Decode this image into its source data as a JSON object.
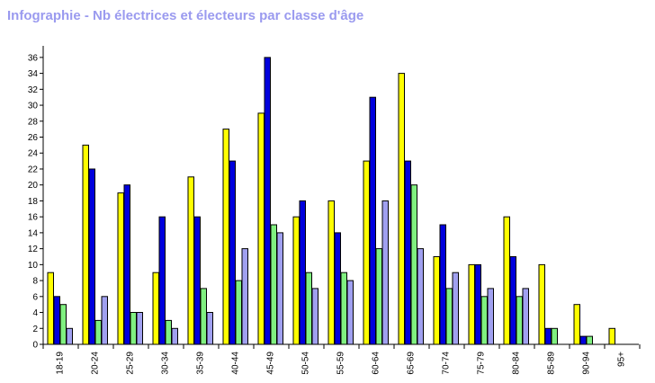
{
  "title": "Infographie - Nb électrices et électeurs par classe d'âge",
  "chart_data": {
    "type": "bar",
    "title": "Infographie - Nb électrices et électeurs par classe d'âge",
    "xlabel": "",
    "ylabel": "",
    "ylim": [
      0,
      37
    ],
    "yticks": [
      0,
      2,
      4,
      6,
      8,
      10,
      12,
      14,
      16,
      18,
      20,
      22,
      24,
      26,
      28,
      30,
      32,
      34,
      36
    ],
    "grid": false,
    "legend": "none",
    "categories": [
      "18-19",
      "20-24",
      "25-29",
      "30-34",
      "35-39",
      "40-44",
      "45-49",
      "50-54",
      "55-59",
      "60-64",
      "65-69",
      "70-74",
      "75-79",
      "80-84",
      "85-89",
      "90-94",
      "95+"
    ],
    "series": [
      {
        "color": "#ffff00",
        "values": [
          9,
          25,
          19,
          9,
          21,
          27,
          29,
          16,
          18,
          23,
          34,
          11,
          10,
          16,
          10,
          5,
          2
        ]
      },
      {
        "color": "#0000dd",
        "values": [
          6,
          22,
          20,
          16,
          16,
          23,
          36,
          18,
          14,
          31,
          23,
          15,
          10,
          11,
          2,
          1,
          0
        ]
      },
      {
        "color": "#80f080",
        "values": [
          5,
          3,
          4,
          3,
          7,
          8,
          15,
          9,
          9,
          12,
          20,
          7,
          6,
          6,
          2,
          1,
          0
        ]
      },
      {
        "color": "#a0a0f0",
        "values": [
          2,
          6,
          4,
          2,
          4,
          12,
          14,
          7,
          8,
          18,
          12,
          9,
          7,
          7,
          0,
          0,
          0
        ]
      }
    ]
  }
}
